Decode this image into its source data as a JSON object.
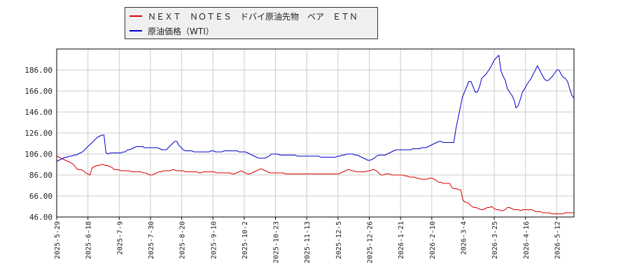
{
  "legend": {
    "series0": "ＮＥＸＴ　ＮＯＴＥＳ　ドバイ原油先物　ベア　ＥＴＮ",
    "series1": "原油価格（WTI）"
  },
  "colors": {
    "series0": "#dd0000",
    "series1": "#0000cc",
    "grid": "#cccccc",
    "axis": "#000000"
  },
  "chart_data": {
    "type": "line",
    "x_tick_labels": [
      "2025-5-29",
      "2025-6-18",
      "2025-7-9",
      "2025-7-30",
      "2025-8-20",
      "2025-9-10",
      "2025-10-2",
      "2025-10-23",
      "2025-11-13",
      "2025-12-5",
      "2025-12-26",
      "2026-1-21",
      "2026-2-10",
      "2026-3-4",
      "2026-3-25",
      "2026-4-16",
      "2026-5-12"
    ],
    "y_tick_labels": [
      "46.00",
      "66.00",
      "86.00",
      "106.00",
      "126.00",
      "146.00",
      "166.00",
      "186.00"
    ],
    "ylim": [
      46,
      206
    ],
    "grid": true,
    "legend_position": "top",
    "series": [
      {
        "name": "ＮＥＸＴ　ＮＯＴＥＳ　ドバイ原油先物　ベア　ＥＴＮ",
        "values": [
          104,
          103,
          102,
          101,
          100,
          99,
          98,
          97,
          95,
          92,
          91,
          91,
          90,
          88,
          87,
          86,
          93,
          94,
          95,
          95,
          96,
          96,
          95,
          95,
          94,
          93,
          91,
          91,
          91,
          90,
          90,
          90,
          90,
          90,
          89,
          89,
          89,
          89,
          89,
          88,
          88,
          87,
          86,
          86,
          87,
          88,
          89,
          89,
          90,
          90,
          90,
          90,
          91,
          91,
          90,
          90,
          90,
          90,
          89,
          89,
          89,
          89,
          89,
          89,
          88,
          88,
          89,
          89,
          89,
          89,
          89,
          89,
          88,
          88,
          88,
          88,
          88,
          88,
          88,
          87,
          87,
          88,
          89,
          90,
          89,
          88,
          87,
          87,
          88,
          89,
          90,
          91,
          92,
          91,
          90,
          89,
          88,
          88,
          88,
          88,
          88,
          88,
          88,
          87,
          87,
          87,
          87,
          87,
          87,
          87,
          87,
          87,
          87,
          87,
          87,
          87,
          87,
          87,
          87,
          87,
          87,
          87,
          87,
          87,
          87,
          87,
          87,
          87,
          88,
          89,
          90,
          91,
          91,
          90,
          90,
          89,
          89,
          89,
          89,
          89,
          90,
          90,
          91,
          91,
          90,
          88,
          86,
          86,
          87,
          87,
          87,
          86,
          86,
          86,
          86,
          86,
          86,
          85,
          85,
          84,
          84,
          84,
          83,
          83,
          82,
          82,
          82,
          82,
          83,
          83,
          82,
          81,
          79,
          79,
          78,
          78,
          78,
          78,
          74,
          73,
          73,
          72,
          72,
          62,
          60,
          60,
          58,
          56,
          55,
          55,
          54,
          53,
          53,
          54,
          55,
          55,
          56,
          54,
          53,
          53,
          52,
          52,
          53,
          55,
          55,
          54,
          53,
          53,
          53,
          52,
          53,
          53,
          53,
          53,
          53,
          52,
          51,
          51,
          51,
          50,
          50,
          50,
          50,
          49,
          49,
          49,
          49,
          49,
          49,
          50,
          50,
          50,
          50,
          50
        ]
      },
      {
        "name": "原油価格（WTI）",
        "values": [
          99,
          100,
          101,
          102,
          103,
          103,
          104,
          104,
          105,
          105,
          106,
          107,
          108,
          110,
          112,
          114,
          116,
          118,
          120,
          122,
          123,
          124,
          124,
          107,
          106,
          107,
          107,
          107,
          107,
          107,
          107,
          108,
          108,
          110,
          110,
          111,
          112,
          113,
          113,
          113,
          113,
          112,
          112,
          112,
          112,
          112,
          112,
          112,
          111,
          110,
          110,
          110,
          112,
          114,
          116,
          118,
          118,
          114,
          112,
          110,
          109,
          109,
          109,
          109,
          108,
          108,
          108,
          108,
          108,
          108,
          108,
          108,
          109,
          109,
          108,
          108,
          108,
          108,
          109,
          109,
          109,
          109,
          109,
          109,
          109,
          108,
          108,
          108,
          108,
          107,
          106,
          105,
          104,
          103,
          102,
          102,
          102,
          102,
          103,
          104,
          106,
          106,
          106,
          106,
          105,
          105,
          105,
          105,
          105,
          105,
          105,
          105,
          104,
          104,
          104,
          104,
          104,
          104,
          104,
          104,
          104,
          104,
          104,
          103,
          103,
          103,
          103,
          103,
          103,
          103,
          103,
          104,
          104,
          105,
          105,
          106,
          106,
          106,
          106,
          105,
          105,
          104,
          103,
          102,
          101,
          100,
          100,
          101,
          102,
          104,
          105,
          105,
          105,
          105,
          106,
          107,
          108,
          109,
          110,
          110,
          110,
          110,
          110,
          110,
          110,
          110,
          111,
          111,
          111,
          111,
          112,
          112,
          112,
          113,
          114,
          115,
          116,
          117,
          118,
          118,
          117,
          117,
          117,
          117,
          117,
          117,
          130,
          140,
          150,
          160,
          165,
          170,
          175,
          175,
          170,
          165,
          165,
          170,
          178,
          180,
          182,
          185,
          188,
          192,
          196,
          198,
          200,
          185,
          180,
          176,
          168,
          165,
          162,
          158,
          150,
          152,
          158,
          165,
          168,
          172,
          175,
          178,
          182,
          186,
          190,
          186,
          182,
          178,
          176,
          176,
          178,
          180,
          183,
          186,
          186,
          182,
          179,
          178,
          175,
          168,
          162,
          159
        ]
      }
    ]
  }
}
